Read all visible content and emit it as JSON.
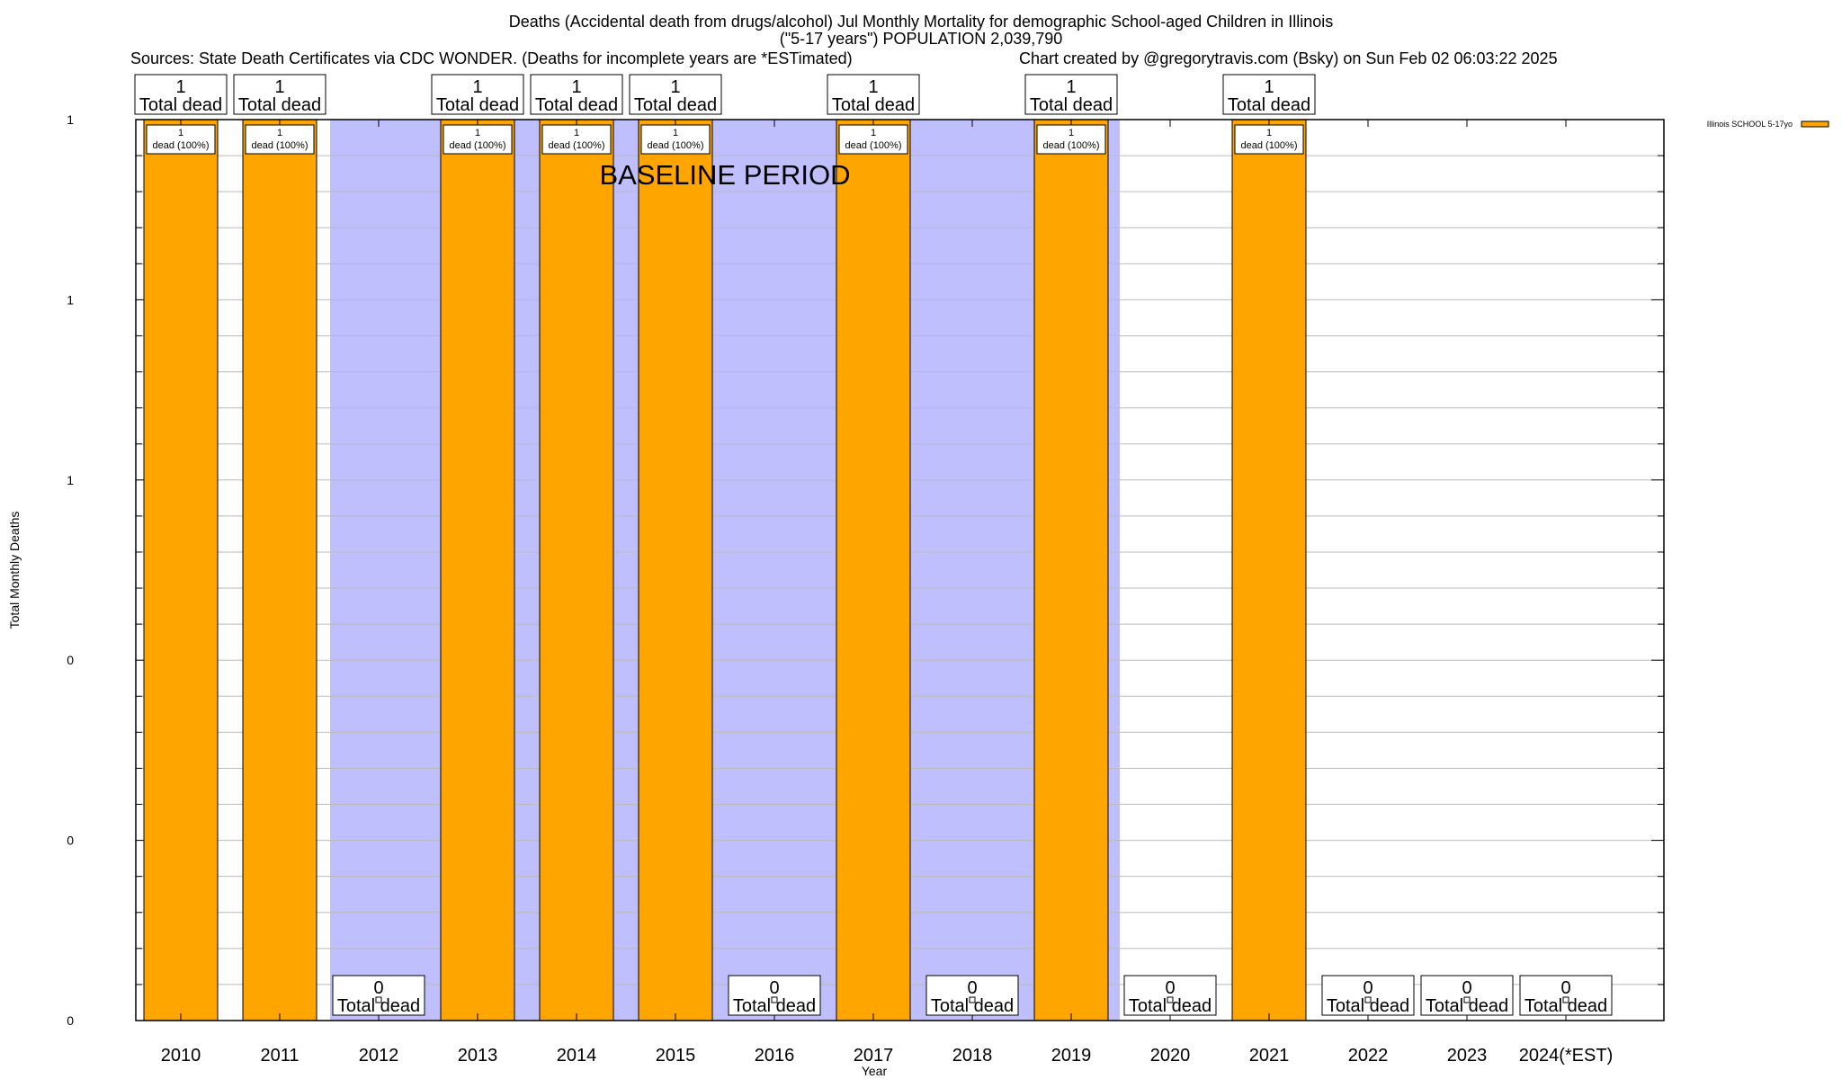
{
  "chart_data": {
    "type": "bar",
    "title": "Deaths (Accidental death from drugs/alcohol) Jul Monthly Mortality for demographic School-aged Children in Illinois",
    "subtitle": "(\"5-17 years\") POPULATION 2,039,790",
    "sources": "Sources: State Death Certificates via CDC WONDER. (Deaths for incomplete years are *ESTimated)",
    "credit": "Chart created by @gregorytravis.com (Bsky) on Sun Feb 02 06:03:22 2025",
    "xlabel": "Year",
    "ylabel": "Total Monthly Deaths",
    "ylim": [
      0,
      1
    ],
    "yticks": [
      0,
      0.2,
      0.4,
      0.6,
      0.8,
      1.0
    ],
    "ytick_labels": [
      "0",
      "0",
      "0",
      "1",
      "1",
      "1"
    ],
    "grid": true,
    "legend": {
      "position": "top-right",
      "entries": [
        {
          "label": "Illinois SCHOOL 5-17yo",
          "color": "#ffa500"
        }
      ]
    },
    "annotation": {
      "text": "BASELINE PERIOD",
      "span_start": "2012",
      "span_end": "2019",
      "color": "#bfbffe"
    },
    "categories": [
      "2010",
      "2011",
      "2012",
      "2013",
      "2014",
      "2015",
      "2016",
      "2017",
      "2018",
      "2019",
      "2020",
      "2021",
      "2022",
      "2023",
      "2024(*EST)"
    ],
    "series": [
      {
        "name": "Illinois SCHOOL 5-17yo",
        "color": "#ffa500",
        "values": [
          1,
          1,
          0,
          1,
          1,
          1,
          0,
          1,
          0,
          1,
          0,
          1,
          0,
          0,
          0
        ]
      }
    ],
    "total_labels": [
      "1",
      "1",
      "0",
      "1",
      "1",
      "1",
      "0",
      "1",
      "0",
      "1",
      "0",
      "1",
      "0",
      "0",
      "0"
    ],
    "total_label_suffix": "Total dead",
    "bar_labels": [
      "1\ndead (100%)",
      "1\ndead (100%)",
      "",
      "1\ndead (100%)",
      "1\ndead (100%)",
      "1\ndead (100%)",
      "",
      "1\ndead (100%)",
      "",
      "1\ndead (100%)",
      "",
      "1\ndead (100%)",
      "",
      "",
      ""
    ]
  }
}
